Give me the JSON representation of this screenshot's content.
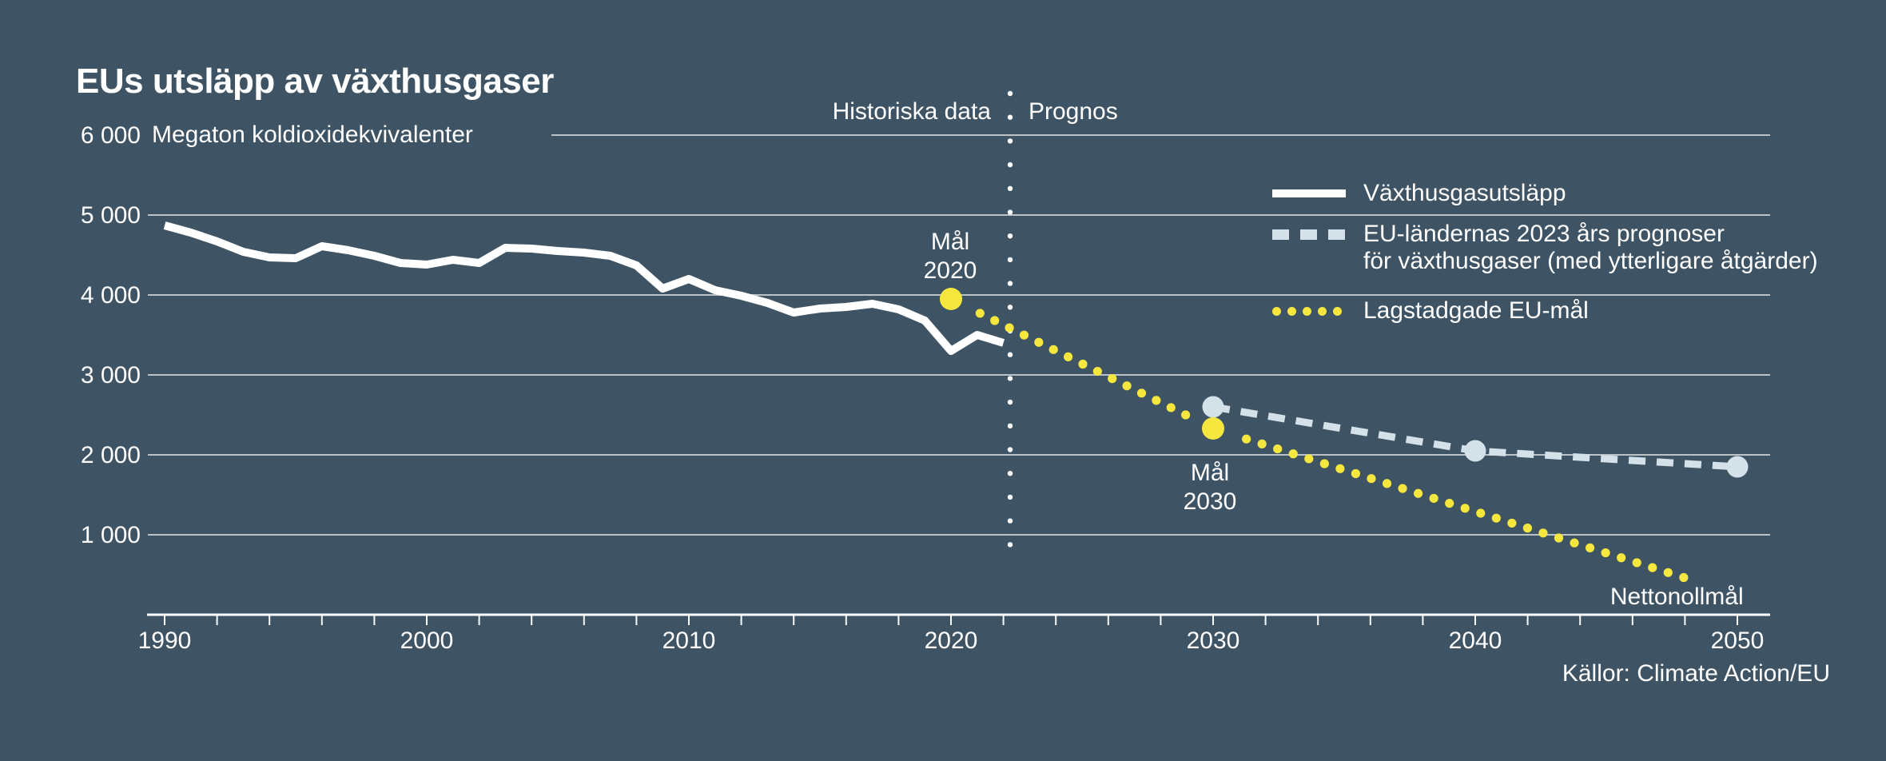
{
  "header": {
    "title": "EUs utsläpp av växthusgaser"
  },
  "axis": {
    "unit_label": "Megaton koldioxidekvivalenter"
  },
  "zones": {
    "left": "Historiska data",
    "right": "Prognos"
  },
  "legend": {
    "items": [
      {
        "label": "Växthusgasutsläpp",
        "swatch": "solid-white-line"
      },
      {
        "label_line1": "EU-ländernas 2023 års prognoser",
        "label_line2": "för växthusgaser (med ytterligare åtgärder)",
        "swatch": "dashed-lightblue-line"
      },
      {
        "label": "Lagstadgade EU-mål",
        "swatch": "dotted-yellow-line"
      }
    ]
  },
  "annotations": {
    "target2020": {
      "line1": "Mål",
      "line2": "2020"
    },
    "target2030": {
      "line1": "Mål",
      "line2": "2030"
    },
    "netzero": "Nettonollmål"
  },
  "source": {
    "text": "Källor: Climate Action/EU"
  },
  "colors": {
    "background": "#3E5464",
    "historical_line": "#FFFFFF",
    "projection_line": "#D5E1E9",
    "target_line": "#F6E73F",
    "gridline": "rgba(255,255,255,0.65)",
    "axis_line": "#FFFFFF"
  },
  "chart_data": {
    "type": "line",
    "title": "EUs utsläpp av växthusgaser",
    "ylabel": "Megaton koldioxidekvivalenter",
    "xlim": [
      1988.5,
      2051.5
    ],
    "ylim": [
      0,
      6000
    ],
    "x_axis": {
      "minor_tick_step": 2,
      "labeled_ticks": [
        1990,
        2000,
        2010,
        2020,
        2030,
        2040,
        2050
      ]
    },
    "y_axis": {
      "ticks": [
        {
          "value": 1000,
          "label": "1 000"
        },
        {
          "value": 2000,
          "label": "2 000"
        },
        {
          "value": 3000,
          "label": "3 000"
        },
        {
          "value": 4000,
          "label": "4 000"
        },
        {
          "value": 5000,
          "label": "5 000"
        },
        {
          "value": 6000,
          "label": "6 000"
        }
      ]
    },
    "divider": {
      "year": 2022.3,
      "left_label": "Historiska data",
      "right_label": "Prognos"
    },
    "series": [
      {
        "name": "Växthusgasutsläpp",
        "style": "solid",
        "color": "#FFFFFF",
        "years": [
          1990,
          1991,
          1992,
          1993,
          1994,
          1995,
          1996,
          1997,
          1998,
          1999,
          2000,
          2001,
          2002,
          2003,
          2004,
          2005,
          2006,
          2007,
          2008,
          2009,
          2010,
          2011,
          2012,
          2013,
          2014,
          2015,
          2016,
          2017,
          2018,
          2019,
          2020,
          2021,
          2022
        ],
        "values": [
          4870,
          4780,
          4670,
          4540,
          4470,
          4460,
          4610,
          4560,
          4490,
          4400,
          4380,
          4440,
          4400,
          4590,
          4580,
          4550,
          4530,
          4490,
          4370,
          4080,
          4200,
          4060,
          3990,
          3900,
          3780,
          3830,
          3850,
          3890,
          3820,
          3680,
          3300,
          3500,
          3400
        ]
      },
      {
        "name": "EU-ländernas 2023 års prognoser för växthusgaser (med ytterligare åtgärder)",
        "style": "dashed",
        "color": "#D5E1E9",
        "years": [
          2030,
          2040,
          2050
        ],
        "values": [
          2600,
          2050,
          1850
        ],
        "point_markers": true
      },
      {
        "name": "Lagstadgade EU-mål",
        "style": "dotted",
        "color": "#F6E73F",
        "years": [
          2020,
          2030,
          2048
        ],
        "values": [
          3950,
          2330,
          460
        ],
        "big_markers": [
          {
            "year": 2020,
            "value": 3950
          },
          {
            "year": 2030,
            "value": 2330
          }
        ],
        "note": "dotted line ends pointing at net zero (Nettonollmål) by 2050"
      }
    ],
    "annotations": [
      {
        "text": "Mål 2020",
        "year": 2020,
        "value": 3950
      },
      {
        "text": "Mål 2030",
        "year": 2030,
        "value": 2330
      },
      {
        "text": "Nettonollmål",
        "year": 2050
      }
    ],
    "source": "Källor: Climate Action/EU",
    "legend_position": "upper-right",
    "grid": "horizontal-only"
  }
}
